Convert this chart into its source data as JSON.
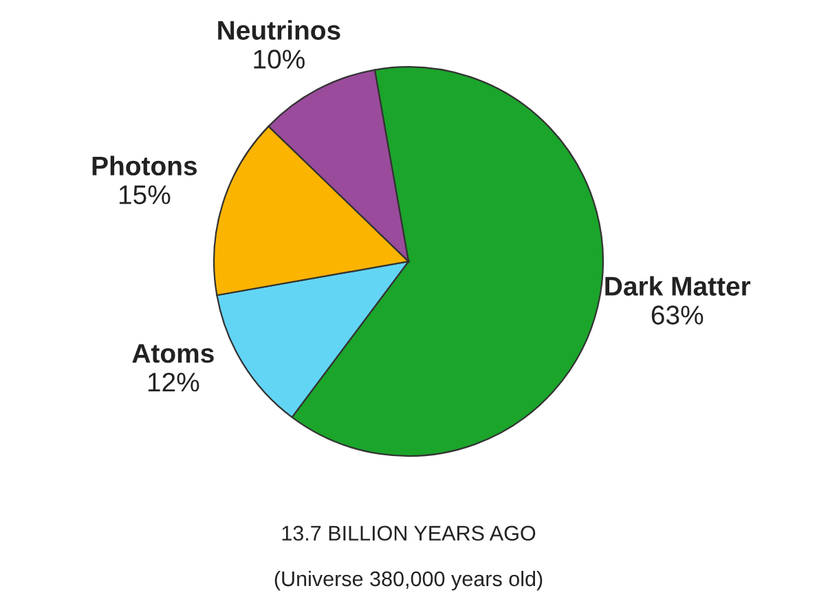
{
  "chart_data": {
    "type": "pie",
    "categories": [
      "Dark Matter",
      "Atoms",
      "Photons",
      "Neutrinos"
    ],
    "values": [
      63,
      12,
      15,
      10
    ],
    "value_labels": [
      "63%",
      "12%",
      "15%",
      "10%"
    ],
    "colors": [
      "#1ba52b",
      "#62d5f5",
      "#fbb400",
      "#9a4b9c"
    ],
    "annotations": [
      "13.7 BILLION YEARS AGO",
      "(Universe 380,000 years old)"
    ]
  }
}
